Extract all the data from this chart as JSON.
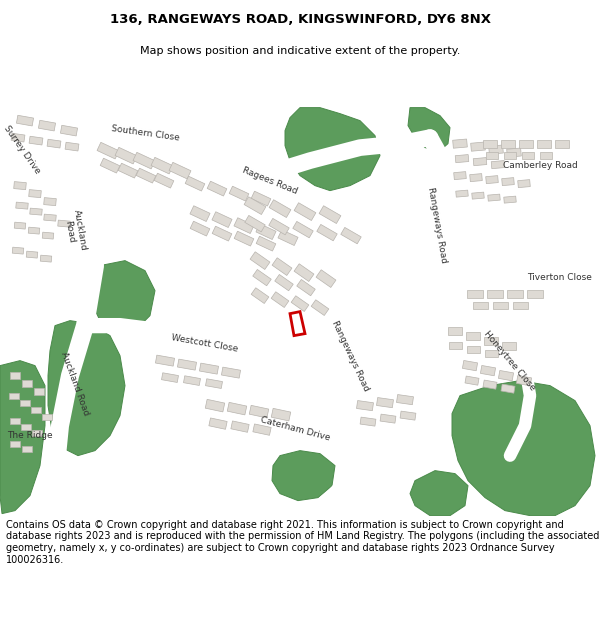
{
  "title_line1": "136, RANGEWAYS ROAD, KINGSWINFORD, DY6 8NX",
  "title_line2": "Map shows position and indicative extent of the property.",
  "footer": "Contains OS data © Crown copyright and database right 2021. This information is subject to Crown copyright and database rights 2023 and is reproduced with the permission of HM Land Registry. The polygons (including the associated geometry, namely x, y co-ordinates) are subject to Crown copyright and database rights 2023 Ordnance Survey 100026316.",
  "title_fontsize": 9.5,
  "subtitle_fontsize": 8,
  "footer_fontsize": 7,
  "red_color": "#cc0000",
  "green_color": "#5c9c5c",
  "green_edge": "#4a8a4a",
  "map_bg": "#f0ede6",
  "road_bg": "#e8e5de",
  "white": "#ffffff",
  "building_fill": "#dedad4",
  "building_edge": "#b8b4ae",
  "road_fill": "#ffffff",
  "label_color": "#333333",
  "title_bg": "#ffffff",
  "footer_bg": "#ffffff",
  "map_border": "#aaaaaa"
}
